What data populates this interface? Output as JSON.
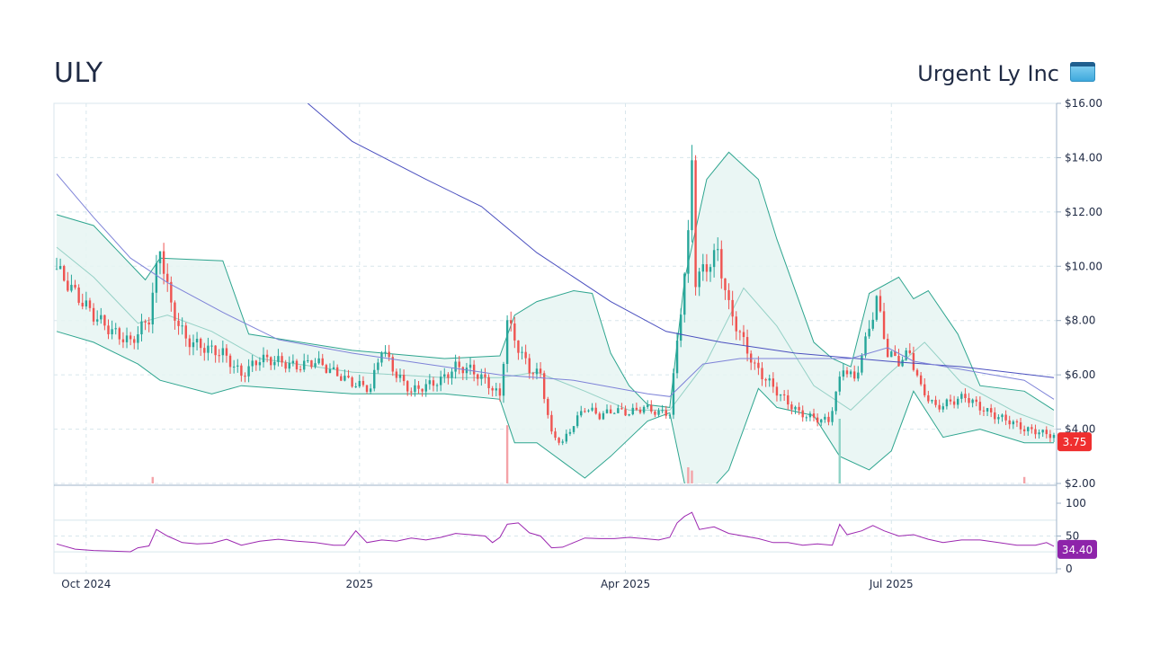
{
  "header": {
    "ticker": "ULY",
    "company": "Urgent Ly Inc",
    "logo_icon": "app-window-icon"
  },
  "colors": {
    "up": "#26a69a",
    "down": "#ef5350",
    "band_fill": "#e6f4f2",
    "band_line": "#2ea58f",
    "ma_long": "#4a4fbf",
    "ma_mid": "#7e83d8",
    "rsi": "#9c27b0",
    "price_badge": "#ef2f2f",
    "rsi_badge": "#8e24aa",
    "grid": "#d8e6ec"
  },
  "chart_data": {
    "type": "candlestick",
    "x_labels": [
      "Oct 2024",
      "2025",
      "Apr 2025",
      "Jul 2025"
    ],
    "price_axis": {
      "ticks": [
        "$2.00",
        "$4.00",
        "$6.00",
        "$8.00",
        "$10.00",
        "$12.00",
        "$14.00",
        "$16.00"
      ],
      "ylim": [
        2,
        16
      ]
    },
    "rsi_axis": {
      "ticks": [
        "0",
        "50",
        "100"
      ],
      "ylim": [
        0,
        100
      ]
    },
    "last_price": "3.75",
    "last_rsi": "34.40",
    "price_series": [
      {
        "t": 0,
        "v": 9.9
      },
      {
        "t": 5,
        "v": 9.0
      },
      {
        "t": 10,
        "v": 8.2
      },
      {
        "t": 15,
        "v": 7.6
      },
      {
        "t": 20,
        "v": 7.2
      },
      {
        "t": 25,
        "v": 8.1
      },
      {
        "t": 28,
        "v": 10.7
      },
      {
        "t": 31,
        "v": 8.5
      },
      {
        "t": 35,
        "v": 7.3
      },
      {
        "t": 40,
        "v": 7.0
      },
      {
        "t": 45,
        "v": 6.8
      },
      {
        "t": 50,
        "v": 6.0
      },
      {
        "t": 55,
        "v": 6.6
      },
      {
        "t": 60,
        "v": 6.5
      },
      {
        "t": 65,
        "v": 6.3
      },
      {
        "t": 70,
        "v": 6.5
      },
      {
        "t": 75,
        "v": 6.1
      },
      {
        "t": 80,
        "v": 5.7
      },
      {
        "t": 85,
        "v": 5.5
      },
      {
        "t": 88,
        "v": 7.0
      },
      {
        "t": 92,
        "v": 6.0
      },
      {
        "t": 96,
        "v": 5.4
      },
      {
        "t": 100,
        "v": 5.6
      },
      {
        "t": 104,
        "v": 5.8
      },
      {
        "t": 108,
        "v": 6.3
      },
      {
        "t": 112,
        "v": 6.2
      },
      {
        "t": 116,
        "v": 5.8
      },
      {
        "t": 120,
        "v": 5.2
      },
      {
        "t": 122,
        "v": 8.0
      },
      {
        "t": 125,
        "v": 7.0
      },
      {
        "t": 128,
        "v": 6.2
      },
      {
        "t": 131,
        "v": 6.0
      },
      {
        "t": 134,
        "v": 3.8
      },
      {
        "t": 137,
        "v": 3.5
      },
      {
        "t": 140,
        "v": 4.2
      },
      {
        "t": 143,
        "v": 4.8
      },
      {
        "t": 147,
        "v": 4.5
      },
      {
        "t": 151,
        "v": 4.7
      },
      {
        "t": 155,
        "v": 4.6
      },
      {
        "t": 159,
        "v": 4.8
      },
      {
        "t": 163,
        "v": 4.6
      },
      {
        "t": 166,
        "v": 4.6
      },
      {
        "t": 168,
        "v": 7.2
      },
      {
        "t": 171,
        "v": 11.0
      },
      {
        "t": 172,
        "v": 14.0
      },
      {
        "t": 173,
        "v": 9.5
      },
      {
        "t": 176,
        "v": 10.0
      },
      {
        "t": 179,
        "v": 10.5
      },
      {
        "t": 182,
        "v": 8.5
      },
      {
        "t": 185,
        "v": 7.5
      },
      {
        "t": 189,
        "v": 6.3
      },
      {
        "t": 193,
        "v": 5.7
      },
      {
        "t": 197,
        "v": 5.1
      },
      {
        "t": 201,
        "v": 4.6
      },
      {
        "t": 205,
        "v": 4.4
      },
      {
        "t": 209,
        "v": 4.3
      },
      {
        "t": 213,
        "v": 6.3
      },
      {
        "t": 216,
        "v": 5.8
      },
      {
        "t": 219,
        "v": 7.2
      },
      {
        "t": 222,
        "v": 8.8
      },
      {
        "t": 225,
        "v": 6.8
      },
      {
        "t": 228,
        "v": 6.5
      },
      {
        "t": 231,
        "v": 6.8
      },
      {
        "t": 234,
        "v": 5.5
      },
      {
        "t": 238,
        "v": 4.8
      },
      {
        "t": 242,
        "v": 5.0
      },
      {
        "t": 246,
        "v": 5.2
      },
      {
        "t": 250,
        "v": 4.8
      },
      {
        "t": 254,
        "v": 4.5
      },
      {
        "t": 258,
        "v": 4.3
      },
      {
        "t": 262,
        "v": 4.0
      },
      {
        "t": 266,
        "v": 3.9
      },
      {
        "t": 270,
        "v": 3.75
      }
    ],
    "bands": {
      "upper": [
        {
          "t": 0,
          "v": 11.9
        },
        {
          "t": 10,
          "v": 11.5
        },
        {
          "t": 24,
          "v": 9.5
        },
        {
          "t": 28,
          "v": 10.3
        },
        {
          "t": 45,
          "v": 10.2
        },
        {
          "t": 52,
          "v": 7.5
        },
        {
          "t": 80,
          "v": 6.9
        },
        {
          "t": 105,
          "v": 6.6
        },
        {
          "t": 120,
          "v": 6.7
        },
        {
          "t": 124,
          "v": 8.2
        },
        {
          "t": 130,
          "v": 8.7
        },
        {
          "t": 140,
          "v": 9.1
        },
        {
          "t": 145,
          "v": 9.0
        },
        {
          "t": 150,
          "v": 6.8
        },
        {
          "t": 155,
          "v": 5.6
        },
        {
          "t": 160,
          "v": 4.9
        },
        {
          "t": 166,
          "v": 4.8
        },
        {
          "t": 170,
          "v": 9.5
        },
        {
          "t": 176,
          "v": 13.2
        },
        {
          "t": 182,
          "v": 14.2
        },
        {
          "t": 190,
          "v": 13.2
        },
        {
          "t": 195,
          "v": 11.0
        },
        {
          "t": 205,
          "v": 7.2
        },
        {
          "t": 210,
          "v": 6.6
        },
        {
          "t": 215,
          "v": 6.3
        },
        {
          "t": 220,
          "v": 9.0
        },
        {
          "t": 228,
          "v": 9.6
        },
        {
          "t": 232,
          "v": 8.8
        },
        {
          "t": 236,
          "v": 9.1
        },
        {
          "t": 244,
          "v": 7.5
        },
        {
          "t": 250,
          "v": 5.6
        },
        {
          "t": 262,
          "v": 5.4
        },
        {
          "t": 270,
          "v": 4.7
        }
      ],
      "lower": [
        {
          "t": 0,
          "v": 7.6
        },
        {
          "t": 10,
          "v": 7.2
        },
        {
          "t": 22,
          "v": 6.4
        },
        {
          "t": 28,
          "v": 5.8
        },
        {
          "t": 42,
          "v": 5.3
        },
        {
          "t": 50,
          "v": 5.6
        },
        {
          "t": 80,
          "v": 5.3
        },
        {
          "t": 105,
          "v": 5.3
        },
        {
          "t": 120,
          "v": 5.1
        },
        {
          "t": 124,
          "v": 3.5
        },
        {
          "t": 130,
          "v": 3.5
        },
        {
          "t": 137,
          "v": 2.8
        },
        {
          "t": 143,
          "v": 2.2
        },
        {
          "t": 150,
          "v": 3.0
        },
        {
          "t": 160,
          "v": 4.3
        },
        {
          "t": 166,
          "v": 4.6
        },
        {
          "t": 170,
          "v": 2.0
        },
        {
          "t": 176,
          "v": 1.6
        },
        {
          "t": 182,
          "v": 2.5
        },
        {
          "t": 190,
          "v": 5.5
        },
        {
          "t": 195,
          "v": 4.8
        },
        {
          "t": 205,
          "v": 4.5
        },
        {
          "t": 212,
          "v": 3.0
        },
        {
          "t": 220,
          "v": 2.5
        },
        {
          "t": 226,
          "v": 3.2
        },
        {
          "t": 232,
          "v": 5.4
        },
        {
          "t": 240,
          "v": 3.7
        },
        {
          "t": 250,
          "v": 4.0
        },
        {
          "t": 262,
          "v": 3.5
        },
        {
          "t": 270,
          "v": 3.5
        }
      ],
      "middle": [
        {
          "t": 0,
          "v": 10.7
        },
        {
          "t": 10,
          "v": 9.6
        },
        {
          "t": 22,
          "v": 7.9
        },
        {
          "t": 30,
          "v": 8.2
        },
        {
          "t": 42,
          "v": 7.6
        },
        {
          "t": 55,
          "v": 6.6
        },
        {
          "t": 80,
          "v": 6.1
        },
        {
          "t": 105,
          "v": 5.9
        },
        {
          "t": 120,
          "v": 5.9
        },
        {
          "t": 130,
          "v": 6.1
        },
        {
          "t": 143,
          "v": 5.4
        },
        {
          "t": 155,
          "v": 4.7
        },
        {
          "t": 166,
          "v": 4.7
        },
        {
          "t": 176,
          "v": 6.5
        },
        {
          "t": 186,
          "v": 9.2
        },
        {
          "t": 195,
          "v": 7.8
        },
        {
          "t": 205,
          "v": 5.6
        },
        {
          "t": 215,
          "v": 4.7
        },
        {
          "t": 225,
          "v": 6.0
        },
        {
          "t": 235,
          "v": 7.2
        },
        {
          "t": 245,
          "v": 5.7
        },
        {
          "t": 260,
          "v": 4.6
        },
        {
          "t": 270,
          "v": 4.1
        }
      ]
    },
    "ma_long": [
      {
        "t": 68,
        "v": 16.0
      },
      {
        "t": 80,
        "v": 14.6
      },
      {
        "t": 100,
        "v": 13.2
      },
      {
        "t": 115,
        "v": 12.2
      },
      {
        "t": 130,
        "v": 10.5
      },
      {
        "t": 150,
        "v": 8.7
      },
      {
        "t": 165,
        "v": 7.6
      },
      {
        "t": 180,
        "v": 7.2
      },
      {
        "t": 200,
        "v": 6.8
      },
      {
        "t": 225,
        "v": 6.5
      },
      {
        "t": 245,
        "v": 6.3
      },
      {
        "t": 270,
        "v": 5.9
      }
    ],
    "ma_mid": [
      {
        "t": 0,
        "v": 13.4
      },
      {
        "t": 10,
        "v": 11.8
      },
      {
        "t": 20,
        "v": 10.3
      },
      {
        "t": 30,
        "v": 9.4
      },
      {
        "t": 45,
        "v": 8.3
      },
      {
        "t": 60,
        "v": 7.3
      },
      {
        "t": 80,
        "v": 6.8
      },
      {
        "t": 100,
        "v": 6.4
      },
      {
        "t": 120,
        "v": 6.0
      },
      {
        "t": 140,
        "v": 5.8
      },
      {
        "t": 160,
        "v": 5.3
      },
      {
        "t": 166,
        "v": 5.2
      },
      {
        "t": 175,
        "v": 6.4
      },
      {
        "t": 185,
        "v": 6.6
      },
      {
        "t": 200,
        "v": 6.6
      },
      {
        "t": 215,
        "v": 6.6
      },
      {
        "t": 225,
        "v": 7.0
      },
      {
        "t": 232,
        "v": 6.5
      },
      {
        "t": 245,
        "v": 6.2
      },
      {
        "t": 262,
        "v": 5.8
      },
      {
        "t": 270,
        "v": 5.1
      }
    ],
    "rsi": [
      {
        "t": 0,
        "v": 38
      },
      {
        "t": 5,
        "v": 30
      },
      {
        "t": 10,
        "v": 28
      },
      {
        "t": 15,
        "v": 27
      },
      {
        "t": 20,
        "v": 26
      },
      {
        "t": 22,
        "v": 32
      },
      {
        "t": 25,
        "v": 35
      },
      {
        "t": 27,
        "v": 60
      },
      {
        "t": 30,
        "v": 50
      },
      {
        "t": 34,
        "v": 40
      },
      {
        "t": 38,
        "v": 38
      },
      {
        "t": 42,
        "v": 39
      },
      {
        "t": 46,
        "v": 45
      },
      {
        "t": 50,
        "v": 36
      },
      {
        "t": 55,
        "v": 42
      },
      {
        "t": 60,
        "v": 45
      },
      {
        "t": 65,
        "v": 42
      },
      {
        "t": 70,
        "v": 40
      },
      {
        "t": 75,
        "v": 36
      },
      {
        "t": 78,
        "v": 36
      },
      {
        "t": 81,
        "v": 58
      },
      {
        "t": 84,
        "v": 40
      },
      {
        "t": 88,
        "v": 44
      },
      {
        "t": 92,
        "v": 42
      },
      {
        "t": 96,
        "v": 47
      },
      {
        "t": 100,
        "v": 44
      },
      {
        "t": 104,
        "v": 48
      },
      {
        "t": 108,
        "v": 54
      },
      {
        "t": 112,
        "v": 52
      },
      {
        "t": 116,
        "v": 50
      },
      {
        "t": 118,
        "v": 40
      },
      {
        "t": 120,
        "v": 48
      },
      {
        "t": 122,
        "v": 68
      },
      {
        "t": 125,
        "v": 70
      },
      {
        "t": 128,
        "v": 55
      },
      {
        "t": 131,
        "v": 50
      },
      {
        "t": 134,
        "v": 32
      },
      {
        "t": 137,
        "v": 33
      },
      {
        "t": 140,
        "v": 40
      },
      {
        "t": 143,
        "v": 47
      },
      {
        "t": 147,
        "v": 46
      },
      {
        "t": 151,
        "v": 46
      },
      {
        "t": 155,
        "v": 48
      },
      {
        "t": 159,
        "v": 46
      },
      {
        "t": 163,
        "v": 44
      },
      {
        "t": 166,
        "v": 48
      },
      {
        "t": 168,
        "v": 70
      },
      {
        "t": 170,
        "v": 80
      },
      {
        "t": 172,
        "v": 86
      },
      {
        "t": 174,
        "v": 60
      },
      {
        "t": 178,
        "v": 64
      },
      {
        "t": 182,
        "v": 54
      },
      {
        "t": 186,
        "v": 50
      },
      {
        "t": 190,
        "v": 46
      },
      {
        "t": 194,
        "v": 40
      },
      {
        "t": 198,
        "v": 40
      },
      {
        "t": 202,
        "v": 36
      },
      {
        "t": 206,
        "v": 38
      },
      {
        "t": 210,
        "v": 36
      },
      {
        "t": 212,
        "v": 68
      },
      {
        "t": 214,
        "v": 52
      },
      {
        "t": 218,
        "v": 58
      },
      {
        "t": 221,
        "v": 66
      },
      {
        "t": 224,
        "v": 58
      },
      {
        "t": 228,
        "v": 50
      },
      {
        "t": 232,
        "v": 52
      },
      {
        "t": 236,
        "v": 45
      },
      {
        "t": 240,
        "v": 40
      },
      {
        "t": 245,
        "v": 44
      },
      {
        "t": 250,
        "v": 44
      },
      {
        "t": 255,
        "v": 40
      },
      {
        "t": 260,
        "v": 36
      },
      {
        "t": 265,
        "v": 36
      },
      {
        "t": 268,
        "v": 40
      },
      {
        "t": 270,
        "v": 34.4
      }
    ],
    "volume_spikes": [
      {
        "t": 122,
        "v": 0.9
      },
      {
        "t": 171,
        "v": 0.25
      },
      {
        "t": 172,
        "v": 0.2
      },
      {
        "t": 212,
        "v": 1.0
      },
      {
        "t": 262,
        "v": 0.1
      },
      {
        "t": 26,
        "v": 0.1
      }
    ]
  }
}
